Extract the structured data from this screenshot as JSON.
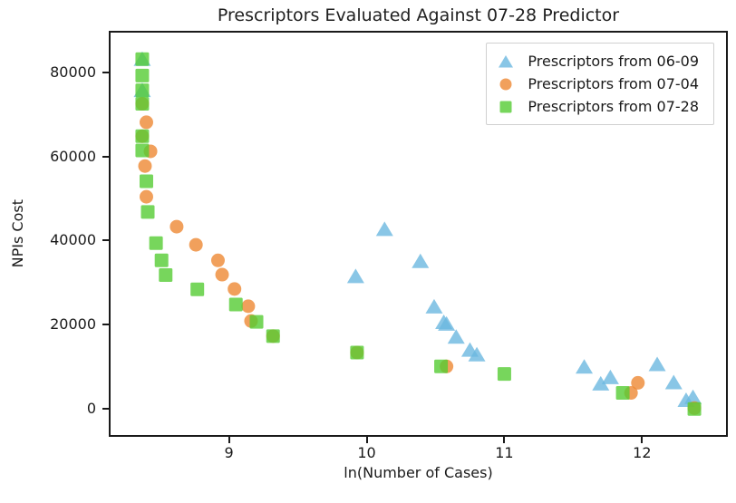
{
  "chart_data": {
    "type": "scatter",
    "title": "Prescriptors Evaluated Against 07-28 Predictor",
    "xlabel": "ln(Number of Cases)",
    "ylabel": "NPIs Cost",
    "xlim": [
      8.14,
      12.61
    ],
    "ylim": [
      -6200,
      89400
    ],
    "xticks": [
      9,
      10,
      11,
      12
    ],
    "yticks": [
      0,
      20000,
      40000,
      60000,
      80000
    ],
    "grid": false,
    "legend_position": "upper right",
    "marker_alpha": 0.8,
    "series": [
      {
        "name": "Prescriptors from 06-09",
        "marker": "triangle",
        "color": "#6BB8E0",
        "points": [
          [
            8.37,
            83100
          ],
          [
            8.37,
            75700
          ],
          [
            9.92,
            31500
          ],
          [
            10.13,
            42700
          ],
          [
            10.39,
            35100
          ],
          [
            10.49,
            24300
          ],
          [
            10.56,
            20600
          ],
          [
            10.58,
            20200
          ],
          [
            10.65,
            17100
          ],
          [
            10.75,
            14000
          ],
          [
            10.8,
            12900
          ],
          [
            11.58,
            10000
          ],
          [
            11.7,
            6000
          ],
          [
            11.77,
            7500
          ],
          [
            12.11,
            10600
          ],
          [
            12.23,
            6300
          ],
          [
            12.32,
            2100
          ],
          [
            12.37,
            2800
          ]
        ]
      },
      {
        "name": "Prescriptors from 07-04",
        "marker": "circle",
        "color": "#EE8833",
        "points": [
          [
            8.37,
            72500
          ],
          [
            8.4,
            68100
          ],
          [
            8.37,
            64800
          ],
          [
            8.43,
            61200
          ],
          [
            8.39,
            57700
          ],
          [
            8.4,
            50400
          ],
          [
            8.62,
            43300
          ],
          [
            8.76,
            39000
          ],
          [
            8.92,
            35300
          ],
          [
            8.95,
            31900
          ],
          [
            9.04,
            28500
          ],
          [
            9.14,
            24400
          ],
          [
            9.16,
            20900
          ],
          [
            9.32,
            17300
          ],
          [
            9.93,
            13400
          ],
          [
            10.58,
            10100
          ],
          [
            11.92,
            3800
          ],
          [
            11.97,
            6200
          ],
          [
            12.38,
            200
          ]
        ]
      },
      {
        "name": "Prescriptors from 07-28",
        "marker": "square",
        "color": "#55CC33",
        "points": [
          [
            8.37,
            83100
          ],
          [
            8.37,
            79200
          ],
          [
            8.37,
            75700
          ],
          [
            8.37,
            72500
          ],
          [
            8.37,
            64800
          ],
          [
            8.37,
            61400
          ],
          [
            8.4,
            54100
          ],
          [
            8.41,
            46800
          ],
          [
            8.47,
            39400
          ],
          [
            8.51,
            35300
          ],
          [
            8.54,
            31800
          ],
          [
            8.77,
            28400
          ],
          [
            9.05,
            24800
          ],
          [
            9.2,
            20700
          ],
          [
            9.32,
            17300
          ],
          [
            9.93,
            13400
          ],
          [
            10.54,
            10100
          ],
          [
            11.0,
            8300
          ],
          [
            11.86,
            3800
          ],
          [
            12.38,
            0
          ]
        ]
      }
    ]
  }
}
